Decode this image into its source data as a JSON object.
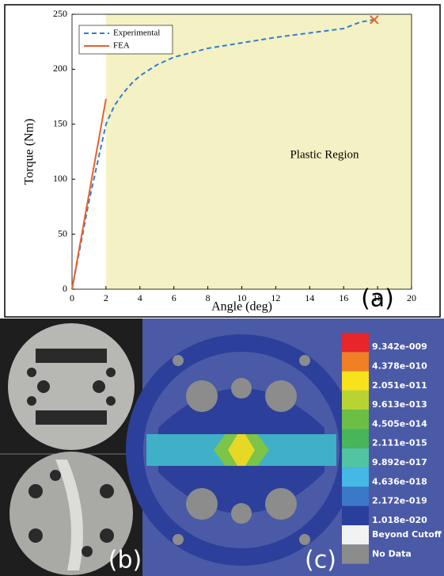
{
  "chart_data": {
    "type": "line",
    "x_label": "Angle (deg)",
    "y_label": "Torque (Nm)",
    "xlim": [
      0,
      20
    ],
    "xticks": [
      0,
      2,
      4,
      6,
      8,
      10,
      12,
      14,
      16,
      18,
      20
    ],
    "ylim": [
      0,
      250
    ],
    "yticks": [
      0,
      50,
      100,
      150,
      200,
      250
    ],
    "legend": "upper left",
    "series": [
      {
        "name": "Experimental",
        "color": "#2f7fd0",
        "dashed": true,
        "x": [
          0,
          0.5,
          1,
          1.5,
          2,
          2.5,
          3,
          3.5,
          4,
          5,
          6,
          7,
          8,
          10,
          12,
          14,
          16,
          17,
          17.8
        ],
        "values": [
          0,
          40,
          80,
          115,
          150,
          167,
          178,
          187,
          194,
          204,
          211,
          215,
          219,
          224,
          229,
          233,
          237,
          243,
          245
        ]
      },
      {
        "name": "FEA",
        "color": "#e8602c",
        "dashed": false,
        "x": [
          0,
          2
        ],
        "values": [
          0,
          173
        ]
      }
    ],
    "shaded_region": {
      "x": [
        2,
        20
      ],
      "color": "#f4f1c4",
      "label": "Plastic Region"
    },
    "failure_point": {
      "x": 17.8,
      "y": 245,
      "color": "#e8602c"
    }
  },
  "panel_labels": [
    "(a)",
    "(b)",
    "(c)"
  ],
  "fea_legend": [
    {
      "label": "9.342e-009",
      "color": "#e8262a"
    },
    {
      "label": "4.378e-010",
      "color": "#f07f26"
    },
    {
      "label": "2.051e-011",
      "color": "#f6e31c"
    },
    {
      "label": "9.613e-013",
      "color": "#b8d433"
    },
    {
      "label": "4.505e-014",
      "color": "#6cbf45"
    },
    {
      "label": "2.111e-015",
      "color": "#48b55a"
    },
    {
      "label": "9.892e-017",
      "color": "#52c4a2"
    },
    {
      "label": "4.636e-018",
      "color": "#45b8e6"
    },
    {
      "label": "2.172e-019",
      "color": "#3a78c8"
    },
    {
      "label": "1.018e-020",
      "color": "#2a3f9c"
    },
    {
      "label": "Beyond Cutoff",
      "color": "#f2f2f2"
    },
    {
      "label": "No Data",
      "color": "#8c8c8c"
    }
  ]
}
